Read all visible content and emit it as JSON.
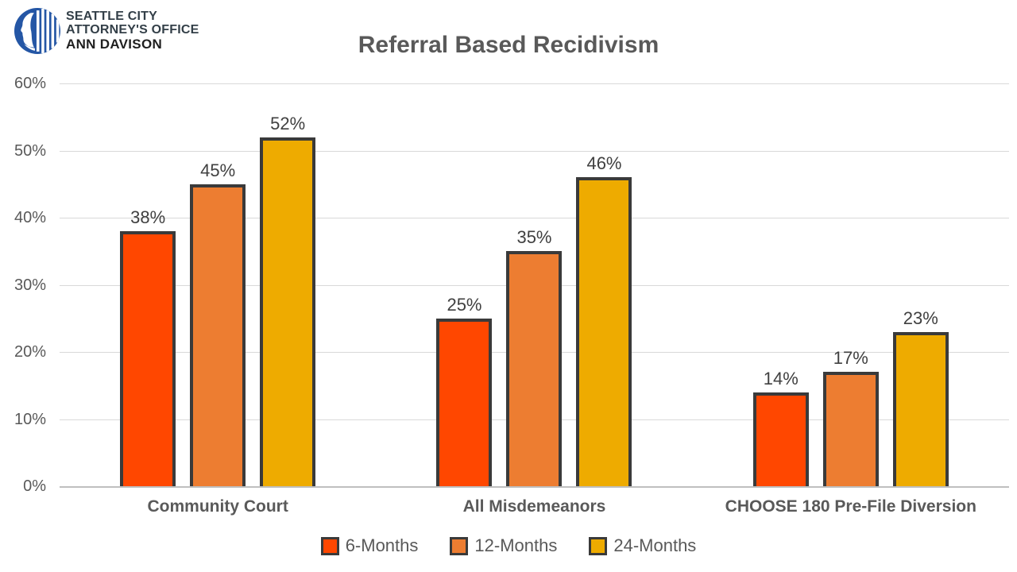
{
  "header": {
    "logo": {
      "line1": "SEATTLE CITY",
      "line2": "ATTORNEY'S OFFICE",
      "line3": "ANN DAVISON",
      "seal_color": "#2456a5"
    }
  },
  "chart_data": {
    "type": "bar",
    "title": "Referral Based Recidivism",
    "categories": [
      "Community Court",
      "All Misdemeanors",
      "CHOOSE 180 Pre-File Diversion"
    ],
    "series": [
      {
        "name": "6-Months",
        "color": "#ff4700",
        "values": [
          38,
          25,
          14
        ]
      },
      {
        "name": "12-Months",
        "color": "#ed7d31",
        "values": [
          45,
          35,
          17
        ]
      },
      {
        "name": "24-Months",
        "color": "#eeab00",
        "values": [
          52,
          46,
          23
        ]
      }
    ],
    "value_suffix": "%",
    "ylim": [
      0,
      60
    ],
    "ytick_step": 10,
    "ytick_labels": [
      "0%",
      "10%",
      "20%",
      "30%",
      "40%",
      "50%",
      "60%"
    ],
    "grid": true,
    "legend_position": "bottom",
    "bar_border_color": "#3a3a3a",
    "gridline_color": "#d9d9d9",
    "axis_line_color": "#bfbfbf",
    "text_color": "#595959",
    "data_label_color": "#404040"
  }
}
